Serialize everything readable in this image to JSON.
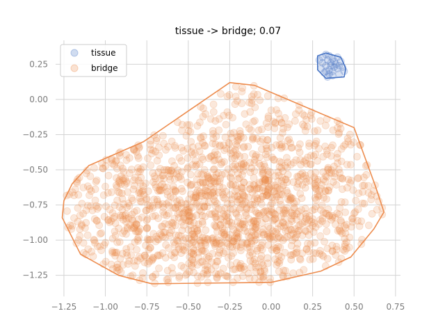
{
  "chart_data": {
    "type": "scatter",
    "title": "tissue -> bridge; 0.07",
    "xlabel": "",
    "ylabel": "",
    "xlim": [
      -1.3,
      0.78
    ],
    "ylim": [
      -1.4,
      0.42
    ],
    "grid": true,
    "legend_placement": "top-left",
    "x_ticks": [
      -1.25,
      -1.0,
      -0.75,
      -0.5,
      -0.25,
      0.0,
      0.25,
      0.5,
      0.75
    ],
    "x_tick_labels": [
      "−1.25",
      "−1.00",
      "−0.75",
      "−0.50",
      "−0.25",
      "0.00",
      "0.25",
      "0.50",
      "0.75"
    ],
    "y_ticks": [
      0.25,
      0.0,
      -0.25,
      -0.5,
      -0.75,
      -1.0,
      -1.25
    ],
    "y_tick_labels": [
      "0.25",
      "0.00",
      "−0.25",
      "−0.50",
      "−0.75",
      "−1.00",
      "−1.25"
    ],
    "series": [
      {
        "name": "tissue",
        "color": "#4472c4",
        "point_alpha": 0.2,
        "hull": [
          [
            0.28,
            0.31
          ],
          [
            0.33,
            0.33
          ],
          [
            0.42,
            0.3
          ],
          [
            0.45,
            0.22
          ],
          [
            0.44,
            0.16
          ],
          [
            0.33,
            0.15
          ],
          [
            0.28,
            0.21
          ]
        ],
        "points": [
          [
            0.29,
            0.28
          ],
          [
            0.31,
            0.3
          ],
          [
            0.33,
            0.32
          ],
          [
            0.35,
            0.31
          ],
          [
            0.37,
            0.29
          ],
          [
            0.4,
            0.3
          ],
          [
            0.42,
            0.27
          ],
          [
            0.43,
            0.23
          ],
          [
            0.44,
            0.2
          ],
          [
            0.41,
            0.18
          ],
          [
            0.37,
            0.17
          ],
          [
            0.34,
            0.16
          ],
          [
            0.32,
            0.19
          ],
          [
            0.3,
            0.22
          ],
          [
            0.33,
            0.24
          ],
          [
            0.36,
            0.26
          ],
          [
            0.38,
            0.23
          ],
          [
            0.35,
            0.21
          ],
          [
            0.39,
            0.25
          ],
          [
            0.31,
            0.26
          ],
          [
            0.34,
            0.28
          ],
          [
            0.37,
            0.2
          ],
          [
            0.4,
            0.22
          ],
          [
            0.36,
            0.24
          ],
          [
            0.33,
            0.2
          ],
          [
            0.38,
            0.27
          ],
          [
            0.41,
            0.24
          ],
          [
            0.35,
            0.18
          ]
        ]
      },
      {
        "name": "bridge",
        "color": "#ed8b4c",
        "point_alpha": 0.2,
        "point_count": 1600,
        "hull": [
          [
            -0.25,
            0.12
          ],
          [
            -0.1,
            0.1
          ],
          [
            0.5,
            -0.2
          ],
          [
            0.63,
            -0.62
          ],
          [
            0.68,
            -0.8
          ],
          [
            0.62,
            -0.92
          ],
          [
            0.48,
            -1.12
          ],
          [
            0.3,
            -1.22
          ],
          [
            0.0,
            -1.3
          ],
          [
            -0.72,
            -1.31
          ],
          [
            -0.92,
            -1.25
          ],
          [
            -1.15,
            -1.1
          ],
          [
            -1.26,
            -0.84
          ],
          [
            -1.25,
            -0.72
          ],
          [
            -1.2,
            -0.6
          ],
          [
            -1.1,
            -0.47
          ],
          [
            -0.77,
            -0.3
          ]
        ]
      }
    ]
  }
}
